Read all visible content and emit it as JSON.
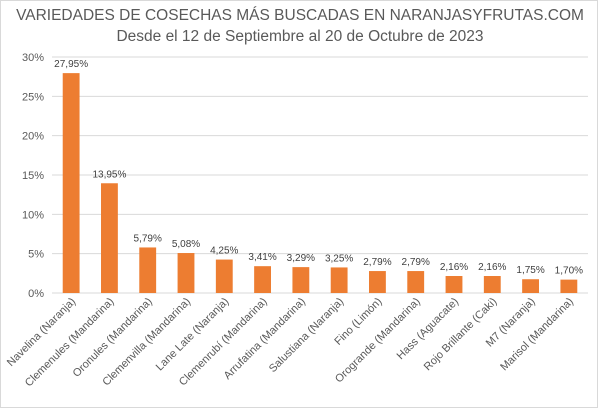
{
  "chart_data": {
    "type": "bar",
    "title": "VARIEDADES DE COSECHAS MÁS BUSCADAS EN NARANJASYFRUTAS.COM",
    "subtitle": "Desde el 12 de Septiembre al 20 de Octubre de 2023",
    "categories": [
      "Navelina (Naranja)",
      "Clemenules (Mandarina)",
      "Oronules (Mandarina)",
      "Clemenvilla (Mandarina)",
      "Lane Late (Naranja)",
      "Clemenrubí (Mandarina)",
      "Arrufatina (Mandarina)",
      "Salustiana (Naranja)",
      "Fino (Limón)",
      "Orogrande (Mandarina)",
      "Hass (Aguacate)",
      "Rojo Brillante (Caki)",
      "M7 (Naranja)",
      "Marisol (Mandarina)"
    ],
    "values": [
      27.95,
      13.95,
      5.79,
      5.08,
      4.25,
      3.41,
      3.29,
      3.25,
      2.79,
      2.79,
      2.16,
      2.16,
      1.75,
      1.7
    ],
    "value_labels": [
      "27,95%",
      "13,95%",
      "5,79%",
      "5,08%",
      "4,25%",
      "3,41%",
      "3,29%",
      "3,25%",
      "2,79%",
      "2,79%",
      "2,16%",
      "2,16%",
      "1,75%",
      "1,70%"
    ],
    "ylim": [
      0,
      30
    ],
    "yticks": [
      0,
      5,
      10,
      15,
      20,
      25,
      30
    ],
    "ytick_labels": [
      "0%",
      "5%",
      "10%",
      "15%",
      "20%",
      "25%",
      "30%"
    ],
    "grid": true,
    "bar_color": "#ed7d31",
    "xlabel": "",
    "ylabel": ""
  }
}
